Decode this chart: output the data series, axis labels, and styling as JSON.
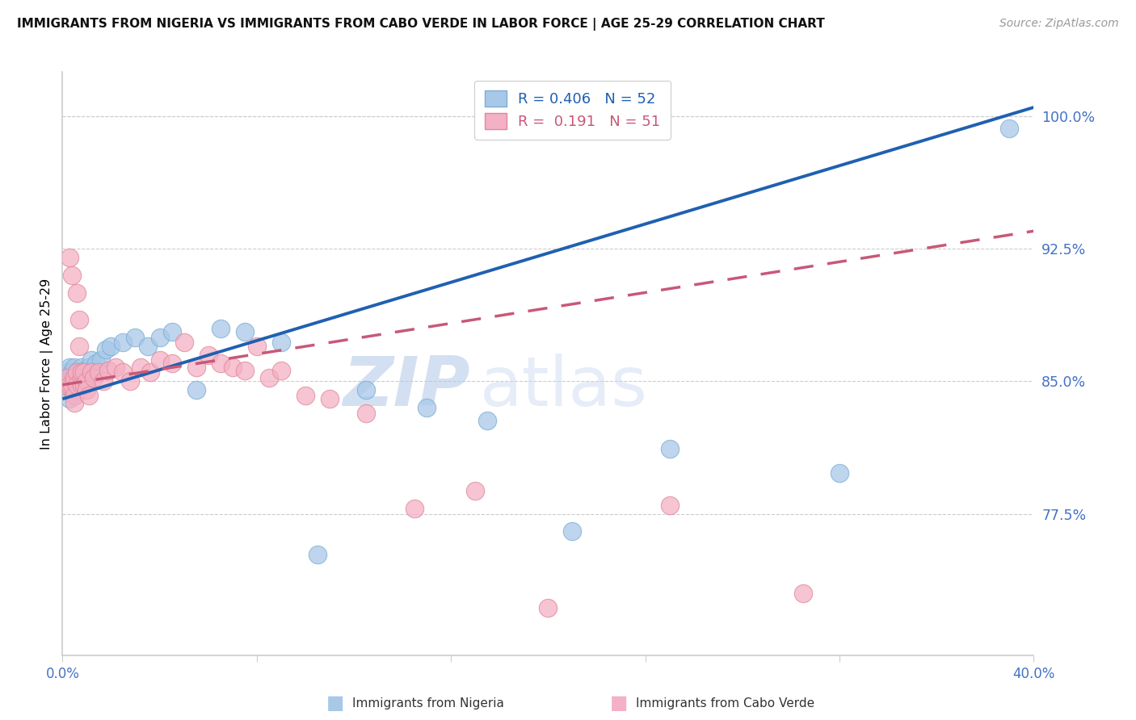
{
  "title": "IMMIGRANTS FROM NIGERIA VS IMMIGRANTS FROM CABO VERDE IN LABOR FORCE | AGE 25-29 CORRELATION CHART",
  "source": "Source: ZipAtlas.com",
  "ylabel": "In Labor Force | Age 25-29",
  "xlim": [
    0.0,
    0.4
  ],
  "ylim": [
    0.695,
    1.025
  ],
  "yticks": [
    0.775,
    0.85,
    0.925,
    1.0
  ],
  "ytick_labels": [
    "77.5%",
    "85.0%",
    "92.5%",
    "100.0%"
  ],
  "xticks": [
    0.0,
    0.08,
    0.16,
    0.24,
    0.32,
    0.4
  ],
  "xtick_labels": [
    "0.0%",
    "",
    "",
    "",
    "",
    "40.0%"
  ],
  "legend_R_nigeria": "0.406",
  "legend_N_nigeria": "52",
  "legend_R_caboverde": "0.191",
  "legend_N_caboverde": "51",
  "nigeria_color": "#A8C8E8",
  "nigeria_edge_color": "#7AADD4",
  "caboverde_color": "#F4B0C4",
  "caboverde_edge_color": "#E08898",
  "nigeria_line_color": "#2060B0",
  "caboverde_line_color": "#C85878",
  "grid_color": "#CCCCCC",
  "watermark_zip": "ZIP",
  "watermark_atlas": "atlas",
  "nigeria_x": [
    0.001,
    0.002,
    0.002,
    0.003,
    0.003,
    0.003,
    0.004,
    0.004,
    0.004,
    0.004,
    0.005,
    0.005,
    0.005,
    0.005,
    0.006,
    0.006,
    0.006,
    0.006,
    0.007,
    0.007,
    0.007,
    0.008,
    0.008,
    0.008,
    0.009,
    0.009,
    0.01,
    0.01,
    0.011,
    0.012,
    0.013,
    0.014,
    0.016,
    0.018,
    0.02,
    0.025,
    0.03,
    0.035,
    0.04,
    0.045,
    0.055,
    0.065,
    0.075,
    0.09,
    0.105,
    0.125,
    0.15,
    0.175,
    0.21,
    0.25,
    0.32,
    0.39
  ],
  "nigeria_y": [
    0.848,
    0.855,
    0.845,
    0.852,
    0.84,
    0.858,
    0.848,
    0.855,
    0.845,
    0.852,
    0.85,
    0.848,
    0.842,
    0.858,
    0.848,
    0.852,
    0.845,
    0.855,
    0.85,
    0.855,
    0.845,
    0.852,
    0.848,
    0.858,
    0.852,
    0.848,
    0.855,
    0.85,
    0.858,
    0.862,
    0.855,
    0.86,
    0.862,
    0.868,
    0.87,
    0.872,
    0.875,
    0.87,
    0.875,
    0.878,
    0.845,
    0.88,
    0.878,
    0.872,
    0.752,
    0.845,
    0.835,
    0.828,
    0.765,
    0.812,
    0.798,
    0.993
  ],
  "caboverde_x": [
    0.001,
    0.002,
    0.003,
    0.003,
    0.004,
    0.004,
    0.005,
    0.005,
    0.005,
    0.006,
    0.006,
    0.006,
    0.007,
    0.007,
    0.008,
    0.008,
    0.008,
    0.009,
    0.009,
    0.01,
    0.01,
    0.011,
    0.012,
    0.013,
    0.015,
    0.017,
    0.019,
    0.022,
    0.025,
    0.028,
    0.032,
    0.036,
    0.04,
    0.045,
    0.05,
    0.055,
    0.06,
    0.065,
    0.07,
    0.075,
    0.08,
    0.085,
    0.09,
    0.1,
    0.11,
    0.125,
    0.145,
    0.17,
    0.2,
    0.25,
    0.305
  ],
  "caboverde_y": [
    0.848,
    0.852,
    0.92,
    0.848,
    0.91,
    0.848,
    0.852,
    0.842,
    0.838,
    0.855,
    0.9,
    0.848,
    0.885,
    0.87,
    0.852,
    0.848,
    0.855,
    0.848,
    0.855,
    0.85,
    0.845,
    0.842,
    0.855,
    0.852,
    0.855,
    0.85,
    0.856,
    0.858,
    0.855,
    0.85,
    0.858,
    0.855,
    0.862,
    0.86,
    0.872,
    0.858,
    0.865,
    0.86,
    0.858,
    0.856,
    0.87,
    0.852,
    0.856,
    0.842,
    0.84,
    0.832,
    0.778,
    0.788,
    0.722,
    0.78,
    0.73
  ]
}
